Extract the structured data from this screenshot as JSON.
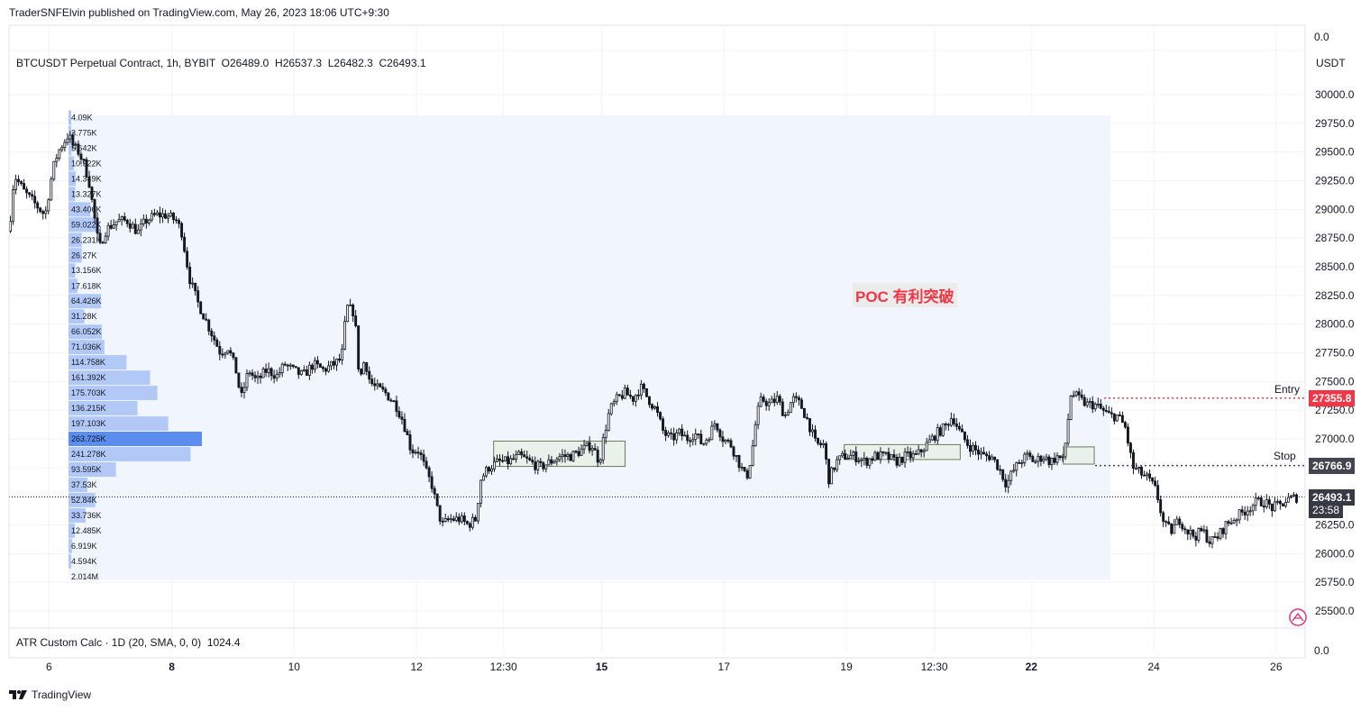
{
  "header": {
    "text": "TraderSNFElvin published on TradingView.com, May 26, 2023 18:06 UTC+9:30"
  },
  "legend": {
    "text": "BTCUSDT Perpetual Contract, 1h, BYBIT  O26489.0  H26537.3  L26482.3  C26493.1"
  },
  "indicator": {
    "text": "ATR Custom Calc · 1D (20, SMA, 0, 0)  1024.4",
    "top_value": "0.0",
    "bottom_value": "0.0"
  },
  "currency": "USDT",
  "annotation": {
    "text": "POC 有利突破",
    "color": "#f23645"
  },
  "lines": {
    "entry": {
      "label": "Entry",
      "price": 27355.8,
      "price_label": "27355.8",
      "color": "#f23645"
    },
    "stop": {
      "label": "Stop",
      "price": 26766.9,
      "price_label": "26766.9",
      "color": "#434651"
    }
  },
  "last_price": {
    "value": 26493.1,
    "label": "26493.1",
    "countdown": "23:58",
    "color": "#363a45"
  },
  "footer": {
    "brand": "TradingView"
  },
  "chart_data": {
    "type": "candlestick",
    "symbol": "BTCUSDT",
    "timeframe": "1h",
    "y_axis": {
      "ticks": [
        "30000.0",
        "29750.0",
        "29500.0",
        "29250.0",
        "29000.0",
        "28750.0",
        "28500.0",
        "28250.0",
        "28000.0",
        "27750.0",
        "27500.0",
        "27250.0",
        "27000.0",
        "26750.0",
        "26500.0",
        "26250.0",
        "26000.0",
        "25750.0",
        "25500.0"
      ],
      "range": [
        25450,
        30250
      ]
    },
    "x_axis": {
      "ticks": [
        {
          "label": "6",
          "bold": false,
          "frac": 0.031
        },
        {
          "label": "8",
          "bold": true,
          "frac": 0.1263
        },
        {
          "label": "10",
          "bold": false,
          "frac": 0.2212
        },
        {
          "label": "12",
          "bold": false,
          "frac": 0.3162
        },
        {
          "label": "12:30",
          "bold": false,
          "frac": 0.3837
        },
        {
          "label": "15",
          "bold": true,
          "frac": 0.4598
        },
        {
          "label": "17",
          "bold": false,
          "frac": 0.5547
        },
        {
          "label": "19",
          "bold": false,
          "frac": 0.6497
        },
        {
          "label": "12:30",
          "bold": false,
          "frac": 0.7179
        },
        {
          "label": "22",
          "bold": true,
          "frac": 0.7932
        },
        {
          "label": "24",
          "bold": false,
          "frac": 0.8882
        },
        {
          "label": "26",
          "bold": false,
          "frac": 0.9831
        }
      ]
    },
    "close_path": [
      [
        0.0,
        28810
      ],
      [
        0.004,
        29300
      ],
      [
        0.012,
        29150
      ],
      [
        0.02,
        29050
      ],
      [
        0.028,
        28950
      ],
      [
        0.034,
        29350
      ],
      [
        0.038,
        29500
      ],
      [
        0.046,
        29650
      ],
      [
        0.05,
        29550
      ],
      [
        0.054,
        29500
      ],
      [
        0.058,
        29400
      ],
      [
        0.062,
        29250
      ],
      [
        0.066,
        28950
      ],
      [
        0.07,
        28650
      ],
      [
        0.074,
        28800
      ],
      [
        0.078,
        28850
      ],
      [
        0.084,
        28900
      ],
      [
        0.092,
        28900
      ],
      [
        0.1,
        28800
      ],
      [
        0.106,
        28900
      ],
      [
        0.114,
        28950
      ],
      [
        0.122,
        28950
      ],
      [
        0.13,
        28900
      ],
      [
        0.134,
        28800
      ],
      [
        0.14,
        28400
      ],
      [
        0.146,
        28200
      ],
      [
        0.152,
        28050
      ],
      [
        0.158,
        27900
      ],
      [
        0.164,
        27750
      ],
      [
        0.17,
        27800
      ],
      [
        0.176,
        27600
      ],
      [
        0.18,
        27350
      ],
      [
        0.186,
        27600
      ],
      [
        0.192,
        27500
      ],
      [
        0.2,
        27600
      ],
      [
        0.208,
        27550
      ],
      [
        0.214,
        27650
      ],
      [
        0.22,
        27600
      ],
      [
        0.228,
        27550
      ],
      [
        0.236,
        27650
      ],
      [
        0.244,
        27600
      ],
      [
        0.252,
        27650
      ],
      [
        0.258,
        27700
      ],
      [
        0.262,
        28150
      ],
      [
        0.268,
        28100
      ],
      [
        0.272,
        27500
      ],
      [
        0.276,
        27700
      ],
      [
        0.28,
        27500
      ],
      [
        0.284,
        27450
      ],
      [
        0.292,
        27400
      ],
      [
        0.3,
        27300
      ],
      [
        0.306,
        27150
      ],
      [
        0.312,
        26900
      ],
      [
        0.318,
        26900
      ],
      [
        0.324,
        26700
      ],
      [
        0.328,
        26600
      ],
      [
        0.332,
        26400
      ],
      [
        0.336,
        26250
      ],
      [
        0.342,
        26300
      ],
      [
        0.35,
        26300
      ],
      [
        0.356,
        26250
      ],
      [
        0.362,
        26300
      ],
      [
        0.366,
        26650
      ],
      [
        0.372,
        26750
      ],
      [
        0.38,
        26800
      ],
      [
        0.388,
        26800
      ],
      [
        0.396,
        26850
      ],
      [
        0.404,
        26800
      ],
      [
        0.412,
        26750
      ],
      [
        0.42,
        26800
      ],
      [
        0.428,
        26850
      ],
      [
        0.436,
        26850
      ],
      [
        0.444,
        26900
      ],
      [
        0.452,
        26950
      ],
      [
        0.458,
        26800
      ],
      [
        0.462,
        27050
      ],
      [
        0.466,
        27250
      ],
      [
        0.472,
        27350
      ],
      [
        0.478,
        27400
      ],
      [
        0.484,
        27350
      ],
      [
        0.49,
        27450
      ],
      [
        0.496,
        27350
      ],
      [
        0.502,
        27250
      ],
      [
        0.508,
        27050
      ],
      [
        0.514,
        27000
      ],
      [
        0.52,
        27050
      ],
      [
        0.526,
        27000
      ],
      [
        0.532,
        27050
      ],
      [
        0.538,
        26950
      ],
      [
        0.544,
        27050
      ],
      [
        0.548,
        27150
      ],
      [
        0.554,
        27000
      ],
      [
        0.56,
        26950
      ],
      [
        0.566,
        26800
      ],
      [
        0.572,
        26650
      ],
      [
        0.576,
        26850
      ],
      [
        0.58,
        27200
      ],
      [
        0.584,
        27350
      ],
      [
        0.59,
        27300
      ],
      [
        0.596,
        27350
      ],
      [
        0.602,
        27200
      ],
      [
        0.608,
        27350
      ],
      [
        0.614,
        27300
      ],
      [
        0.62,
        27150
      ],
      [
        0.626,
        26950
      ],
      [
        0.632,
        26950
      ],
      [
        0.636,
        26650
      ],
      [
        0.642,
        26800
      ],
      [
        0.648,
        26850
      ],
      [
        0.656,
        26850
      ],
      [
        0.664,
        26800
      ],
      [
        0.672,
        26850
      ],
      [
        0.68,
        26850
      ],
      [
        0.688,
        26800
      ],
      [
        0.696,
        26850
      ],
      [
        0.704,
        26850
      ],
      [
        0.712,
        26950
      ],
      [
        0.72,
        27050
      ],
      [
        0.726,
        27100
      ],
      [
        0.732,
        27200
      ],
      [
        0.738,
        27050
      ],
      [
        0.744,
        26950
      ],
      [
        0.75,
        26900
      ],
      [
        0.756,
        26850
      ],
      [
        0.762,
        26850
      ],
      [
        0.768,
        26750
      ],
      [
        0.774,
        26600
      ],
      [
        0.778,
        26700
      ],
      [
        0.784,
        26800
      ],
      [
        0.79,
        26850
      ],
      [
        0.796,
        26800
      ],
      [
        0.802,
        26850
      ],
      [
        0.808,
        26800
      ],
      [
        0.814,
        26850
      ],
      [
        0.818,
        26800
      ],
      [
        0.824,
        27400
      ],
      [
        0.83,
        27350
      ],
      [
        0.836,
        27300
      ],
      [
        0.842,
        27300
      ],
      [
        0.848,
        27250
      ],
      [
        0.854,
        27200
      ],
      [
        0.86,
        27200
      ],
      [
        0.866,
        27100
      ],
      [
        0.872,
        26750
      ],
      [
        0.878,
        26700
      ],
      [
        0.884,
        26650
      ],
      [
        0.89,
        26550
      ],
      [
        0.896,
        26250
      ],
      [
        0.902,
        26200
      ],
      [
        0.908,
        26300
      ],
      [
        0.914,
        26200
      ],
      [
        0.92,
        26150
      ],
      [
        0.926,
        26200
      ],
      [
        0.932,
        26100
      ],
      [
        0.938,
        26150
      ],
      [
        0.944,
        26250
      ],
      [
        0.95,
        26300
      ],
      [
        0.956,
        26350
      ],
      [
        0.962,
        26400
      ],
      [
        0.968,
        26450
      ],
      [
        0.974,
        26450
      ],
      [
        0.98,
        26400
      ],
      [
        0.986,
        26420
      ],
      [
        0.992,
        26470
      ],
      [
        1.0,
        26493.1
      ]
    ],
    "volume_profile": [
      {
        "price": 29800,
        "label": "4.09K",
        "value": 4.09
      },
      {
        "price": 29667,
        "label": "3.775K",
        "value": 3.775
      },
      {
        "price": 29533,
        "label": "5.642K",
        "value": 5.642
      },
      {
        "price": 29400,
        "label": "10.922K",
        "value": 10.922
      },
      {
        "price": 29267,
        "label": "14.349K",
        "value": 14.349
      },
      {
        "price": 29133,
        "label": "13.327K",
        "value": 13.327
      },
      {
        "price": 29000,
        "label": "43.406K",
        "value": 43.406
      },
      {
        "price": 28867,
        "label": "59.022K",
        "value": 59.022
      },
      {
        "price": 28733,
        "label": "26.231K",
        "value": 26.231
      },
      {
        "price": 28600,
        "label": "26.27K",
        "value": 26.27
      },
      {
        "price": 28467,
        "label": "13.156K",
        "value": 13.156
      },
      {
        "price": 28333,
        "label": "17.618K",
        "value": 17.618
      },
      {
        "price": 28200,
        "label": "64.426K",
        "value": 64.426
      },
      {
        "price": 28067,
        "label": "31.28K",
        "value": 31.28
      },
      {
        "price": 27933,
        "label": "66.052K",
        "value": 66.052
      },
      {
        "price": 27800,
        "label": "71.036K",
        "value": 71.036
      },
      {
        "price": 27667,
        "label": "114.758K",
        "value": 114.758
      },
      {
        "price": 27533,
        "label": "161.392K",
        "value": 161.392
      },
      {
        "price": 27400,
        "label": "175.703K",
        "value": 175.703
      },
      {
        "price": 27267,
        "label": "136.215K",
        "value": 136.215
      },
      {
        "price": 27133,
        "label": "197.103K",
        "value": 197.103
      },
      {
        "price": 27000,
        "label": "263.725K",
        "value": 263.725,
        "poc": true
      },
      {
        "price": 26867,
        "label": "241.278K",
        "value": 241.278
      },
      {
        "price": 26733,
        "label": "93.595K",
        "value": 93.595
      },
      {
        "price": 26600,
        "label": "37.53K",
        "value": 37.53
      },
      {
        "price": 26467,
        "label": "52.84K",
        "value": 52.84
      },
      {
        "price": 26333,
        "label": "33.736K",
        "value": 33.736
      },
      {
        "price": 26200,
        "label": "12.485K",
        "value": 12.485
      },
      {
        "price": 26067,
        "label": "6.919K",
        "value": 6.919
      },
      {
        "price": 25933,
        "label": "4.594K",
        "value": 4.594
      },
      {
        "price": 25800,
        "label": "2.014M",
        "value": 0
      }
    ],
    "consolidation_boxes": [
      {
        "x0": 0.376,
        "x1": 0.478,
        "high": 26980,
        "low": 26760
      },
      {
        "x0": 0.648,
        "x1": 0.738,
        "high": 26950,
        "low": 26820
      },
      {
        "x0": 0.818,
        "x1": 0.842,
        "high": 26930,
        "low": 26780
      }
    ],
    "colors": {
      "up": "#131722",
      "down": "#131722",
      "profile_bar": "#b2c8f7",
      "poc_bar": "#5b8def",
      "profile_bg": "#f0f6fc"
    }
  }
}
